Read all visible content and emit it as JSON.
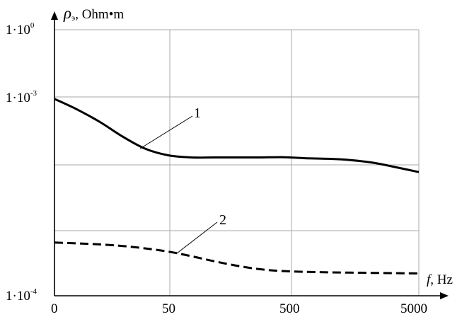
{
  "chart_data": {
    "type": "line",
    "xlabel": {
      "symbol": "f",
      "unit": ", Hz"
    },
    "ylabel": {
      "symbol": "ρ",
      "subscript": "э",
      "unit": ", Ohm•m"
    },
    "x_ticks": [
      "0",
      "50",
      "500",
      "5000"
    ],
    "y_ticks": [
      {
        "base": "1·10",
        "exp": "0"
      },
      {
        "base": "1·10",
        "exp": "-3"
      },
      {
        "base": "1·10",
        "exp": "-4"
      }
    ],
    "grid": true,
    "series": [
      {
        "name": "1",
        "style": "solid",
        "color": "#000000",
        "points": [
          [
            0,
            0.74
          ],
          [
            0.0625,
            0.7
          ],
          [
            0.125,
            0.653
          ],
          [
            0.1875,
            0.598
          ],
          [
            0.25,
            0.552
          ],
          [
            0.3125,
            0.528
          ],
          [
            0.375,
            0.52
          ],
          [
            0.4375,
            0.52
          ],
          [
            0.5,
            0.52
          ],
          [
            0.5625,
            0.52
          ],
          [
            0.625,
            0.521
          ],
          [
            0.6875,
            0.517
          ],
          [
            0.75,
            0.515
          ],
          [
            0.8125,
            0.51
          ],
          [
            0.875,
            0.5
          ],
          [
            0.9375,
            0.483
          ],
          [
            1,
            0.465
          ]
        ]
      },
      {
        "name": "2",
        "style": "dashed",
        "color": "#000000",
        "points": [
          [
            0,
            0.2
          ],
          [
            0.0625,
            0.197
          ],
          [
            0.125,
            0.193
          ],
          [
            0.1875,
            0.187
          ],
          [
            0.25,
            0.178
          ],
          [
            0.3125,
            0.166
          ],
          [
            0.375,
            0.149
          ],
          [
            0.4375,
            0.13
          ],
          [
            0.5,
            0.113
          ],
          [
            0.5625,
            0.1
          ],
          [
            0.625,
            0.093
          ],
          [
            0.6875,
            0.09
          ],
          [
            0.75,
            0.088
          ],
          [
            0.8125,
            0.087
          ],
          [
            0.875,
            0.086
          ],
          [
            0.9375,
            0.085
          ],
          [
            1,
            0.084
          ]
        ]
      }
    ]
  }
}
